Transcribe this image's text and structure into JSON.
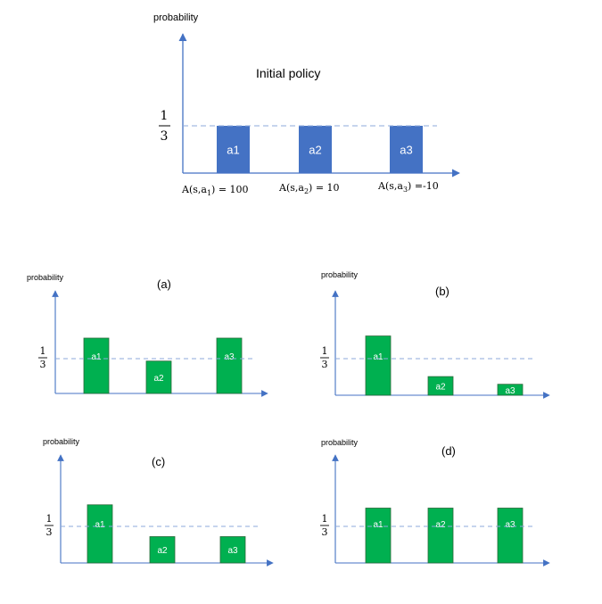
{
  "main": {
    "ylabel": "probability",
    "title": "Initial policy",
    "fraction": {
      "numerator": "1",
      "denominator": "3"
    },
    "bars": [
      {
        "label": "a1",
        "probability": 0.3333
      },
      {
        "label": "a2",
        "probability": 0.3333
      },
      {
        "label": "a3",
        "probability": 0.3333
      }
    ],
    "advantages": [
      {
        "prefix": "A(s,a",
        "sub": "1",
        "suffix": ") = 100"
      },
      {
        "prefix": "A(s,a",
        "sub": "2",
        "suffix": ") = 10"
      },
      {
        "prefix": "A(s,a",
        "sub": "3",
        "suffix": ") =-10"
      }
    ],
    "color": "#4472c4"
  },
  "panels": [
    {
      "title": "(a)",
      "ylabel": "probability",
      "fraction": {
        "numerator": "1",
        "denominator": "3"
      },
      "bars": [
        {
          "label": "a1",
          "probability": 0.53
        },
        {
          "label": "a2",
          "probability": 0.31
        },
        {
          "label": "a3",
          "probability": 0.53
        }
      ]
    },
    {
      "title": "(b)",
      "ylabel": "probability",
      "fraction": {
        "numerator": "1",
        "denominator": "3"
      },
      "bars": [
        {
          "label": "a1",
          "probability": 0.54
        },
        {
          "label": "a2",
          "probability": 0.17
        },
        {
          "label": "a3",
          "probability": 0.1
        }
      ]
    },
    {
      "title": "(c)",
      "ylabel": "probability",
      "fraction": {
        "numerator": "1",
        "denominator": "3"
      },
      "bars": [
        {
          "label": "a1",
          "probability": 0.53
        },
        {
          "label": "a2",
          "probability": 0.24
        },
        {
          "label": "a3",
          "probability": 0.24
        }
      ]
    },
    {
      "title": "(d)",
      "ylabel": "probability",
      "fraction": {
        "numerator": "1",
        "denominator": "3"
      },
      "bars": [
        {
          "label": "a1",
          "probability": 0.5
        },
        {
          "label": "a2",
          "probability": 0.5
        },
        {
          "label": "a3",
          "probability": 0.5
        }
      ]
    }
  ],
  "panel_color": "#00b050"
}
